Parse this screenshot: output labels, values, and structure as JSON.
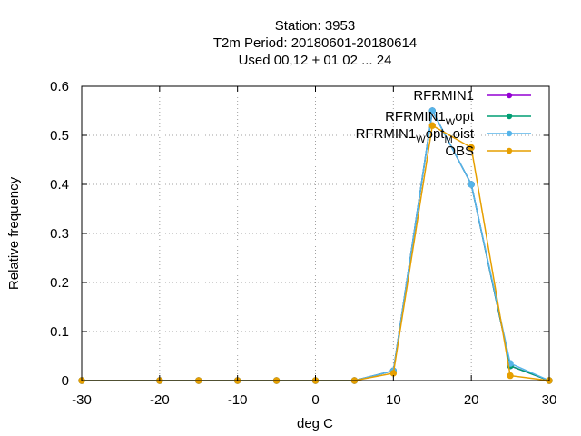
{
  "chart_data": {
    "type": "line",
    "title": [
      "Station:     3953",
      "T2m  Period: 20180601-20180614",
      "Used  00,12  + 01 02 ... 24"
    ],
    "xlabel": "deg C",
    "ylabel": "Relative frequency",
    "xlim": [
      -30,
      30
    ],
    "ylim": [
      0,
      0.6
    ],
    "xticks": [
      -30,
      -20,
      -10,
      0,
      10,
      20,
      30
    ],
    "yticks": [
      0,
      0.1,
      0.2,
      0.3,
      0.4,
      0.5,
      0.6
    ],
    "ytick_labels": [
      "0",
      "0.1",
      "0.2",
      "0.3",
      "0.4",
      "0.5",
      "0.6"
    ],
    "grid": true,
    "legend_position": "top-right",
    "x": [
      -30,
      -20,
      -15,
      -10,
      -5,
      0,
      5,
      10,
      15,
      20,
      25,
      30
    ],
    "series": [
      {
        "name": "RFRMIN1",
        "color": "#9400d3",
        "values": [
          0,
          0,
          0,
          0,
          0,
          0,
          0,
          0.02,
          0.55,
          0.4,
          0.03,
          0
        ]
      },
      {
        "name": "RFRMIN1_opt",
        "name_main": "RFRMIN1",
        "name_sub": "W",
        "name_tail": "opt",
        "color": "#009e73",
        "values": [
          0,
          0,
          0,
          0,
          0,
          0,
          0,
          0.02,
          0.55,
          0.4,
          0.03,
          0
        ]
      },
      {
        "name": "RFRMIN1_opt_Moist",
        "name_main": "RFRMIN1",
        "name_sub": "W",
        "name_tail": "opt",
        "name_sub2": "M",
        "name_tail2": "oist",
        "color": "#56b4e9",
        "values": [
          0,
          0,
          0,
          0,
          0,
          0,
          0,
          0.02,
          0.55,
          0.4,
          0.035,
          0
        ]
      },
      {
        "name": "OBS",
        "color": "#e69f00",
        "values": [
          0,
          0,
          0,
          0,
          0,
          0,
          0,
          0.015,
          0.52,
          0.475,
          0.01,
          0
        ]
      }
    ]
  }
}
